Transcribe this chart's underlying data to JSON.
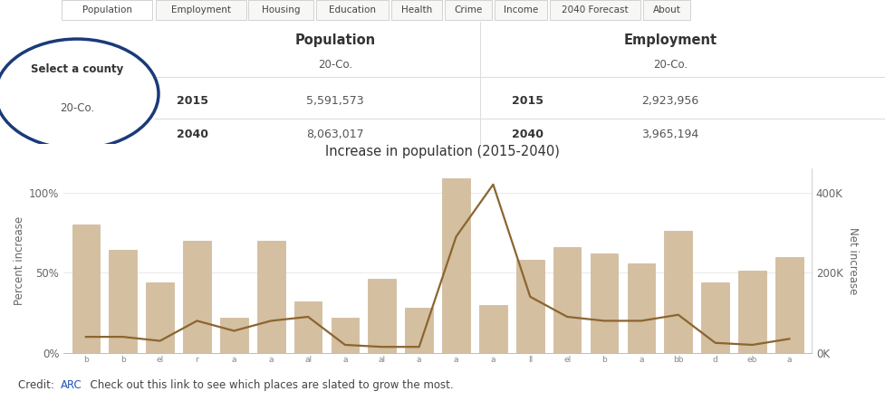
{
  "title": "Increase in population (2015-2040)",
  "bar_color": "#d4bfa0",
  "line_color": "#8B6530",
  "bar_edge_color": "#c4aa88",
  "categories": [
    "b",
    "b",
    "el",
    "r",
    "a",
    "a",
    "al",
    "a",
    "al",
    "a",
    "a",
    "a",
    "ll",
    "el",
    "b",
    "a",
    "bb",
    "d",
    "eb",
    "a"
  ],
  "pct_increase": [
    80,
    64,
    44,
    70,
    22,
    70,
    32,
    22,
    46,
    28,
    109,
    30,
    58,
    66,
    62,
    56,
    76,
    44,
    51,
    60
  ],
  "net_increase": [
    40000,
    40000,
    30000,
    80000,
    55000,
    80000,
    90000,
    20000,
    15000,
    15000,
    290000,
    420000,
    140000,
    90000,
    80000,
    80000,
    95000,
    25000,
    20000,
    35000
  ],
  "ylim_pct": [
    0,
    1.15
  ],
  "ylim_net": [
    0,
    460000
  ],
  "yticks_pct": [
    0,
    0.5,
    1.0
  ],
  "ytick_labels_pct": [
    "0%",
    "50%",
    "100%"
  ],
  "yticks_net": [
    0,
    200000,
    400000
  ],
  "ytick_labels_net": [
    "0K",
    "200K",
    "400K"
  ],
  "ylabel_left": "Percent increase",
  "ylabel_right": "Net increase",
  "bg_color": "#ffffff",
  "plot_bg_color": "#ffffff",
  "tab_labels": [
    "Population",
    "Employment",
    "Housing",
    "Education",
    "Health",
    "Crime",
    "Income",
    "2040 Forecast",
    "About"
  ],
  "select_label": "Select a county",
  "county": "20-Co.",
  "pop_2015": "5,591,573",
  "pop_2040": "8,063,017",
  "emp_2015": "2,923,956",
  "emp_2040": "3,965,194",
  "credit_text": "Credit: ",
  "credit_link": "ARC",
  "credit_rest": "  Check out this link to see which places are slated to grow the most."
}
